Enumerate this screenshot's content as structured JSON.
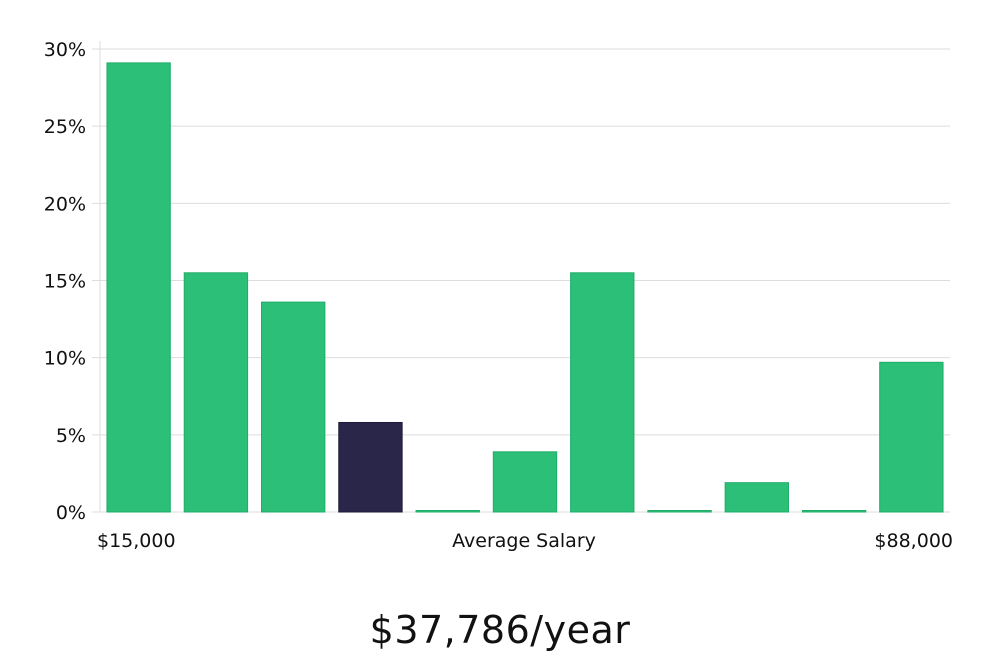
{
  "chart_data": {
    "type": "bar",
    "x_min_label": "$15,000",
    "x_max_label": "$88,000",
    "xlabel": "Average Salary",
    "y_ticks": [
      "0%",
      "5%",
      "10%",
      "15%",
      "20%",
      "25%",
      "30%"
    ],
    "ylim": [
      0,
      30
    ],
    "values": [
      29.1,
      15.5,
      13.6,
      5.8,
      0.05,
      3.9,
      15.5,
      0.05,
      1.9,
      0.05,
      9.7
    ],
    "highlight_index": 3,
    "grid": true,
    "colors": {
      "bar": "#2bbf77",
      "bar_edge": "#21ad69",
      "highlight": "#29264a",
      "grid": "#dddddd"
    }
  },
  "salary_text": "$37,786/year"
}
